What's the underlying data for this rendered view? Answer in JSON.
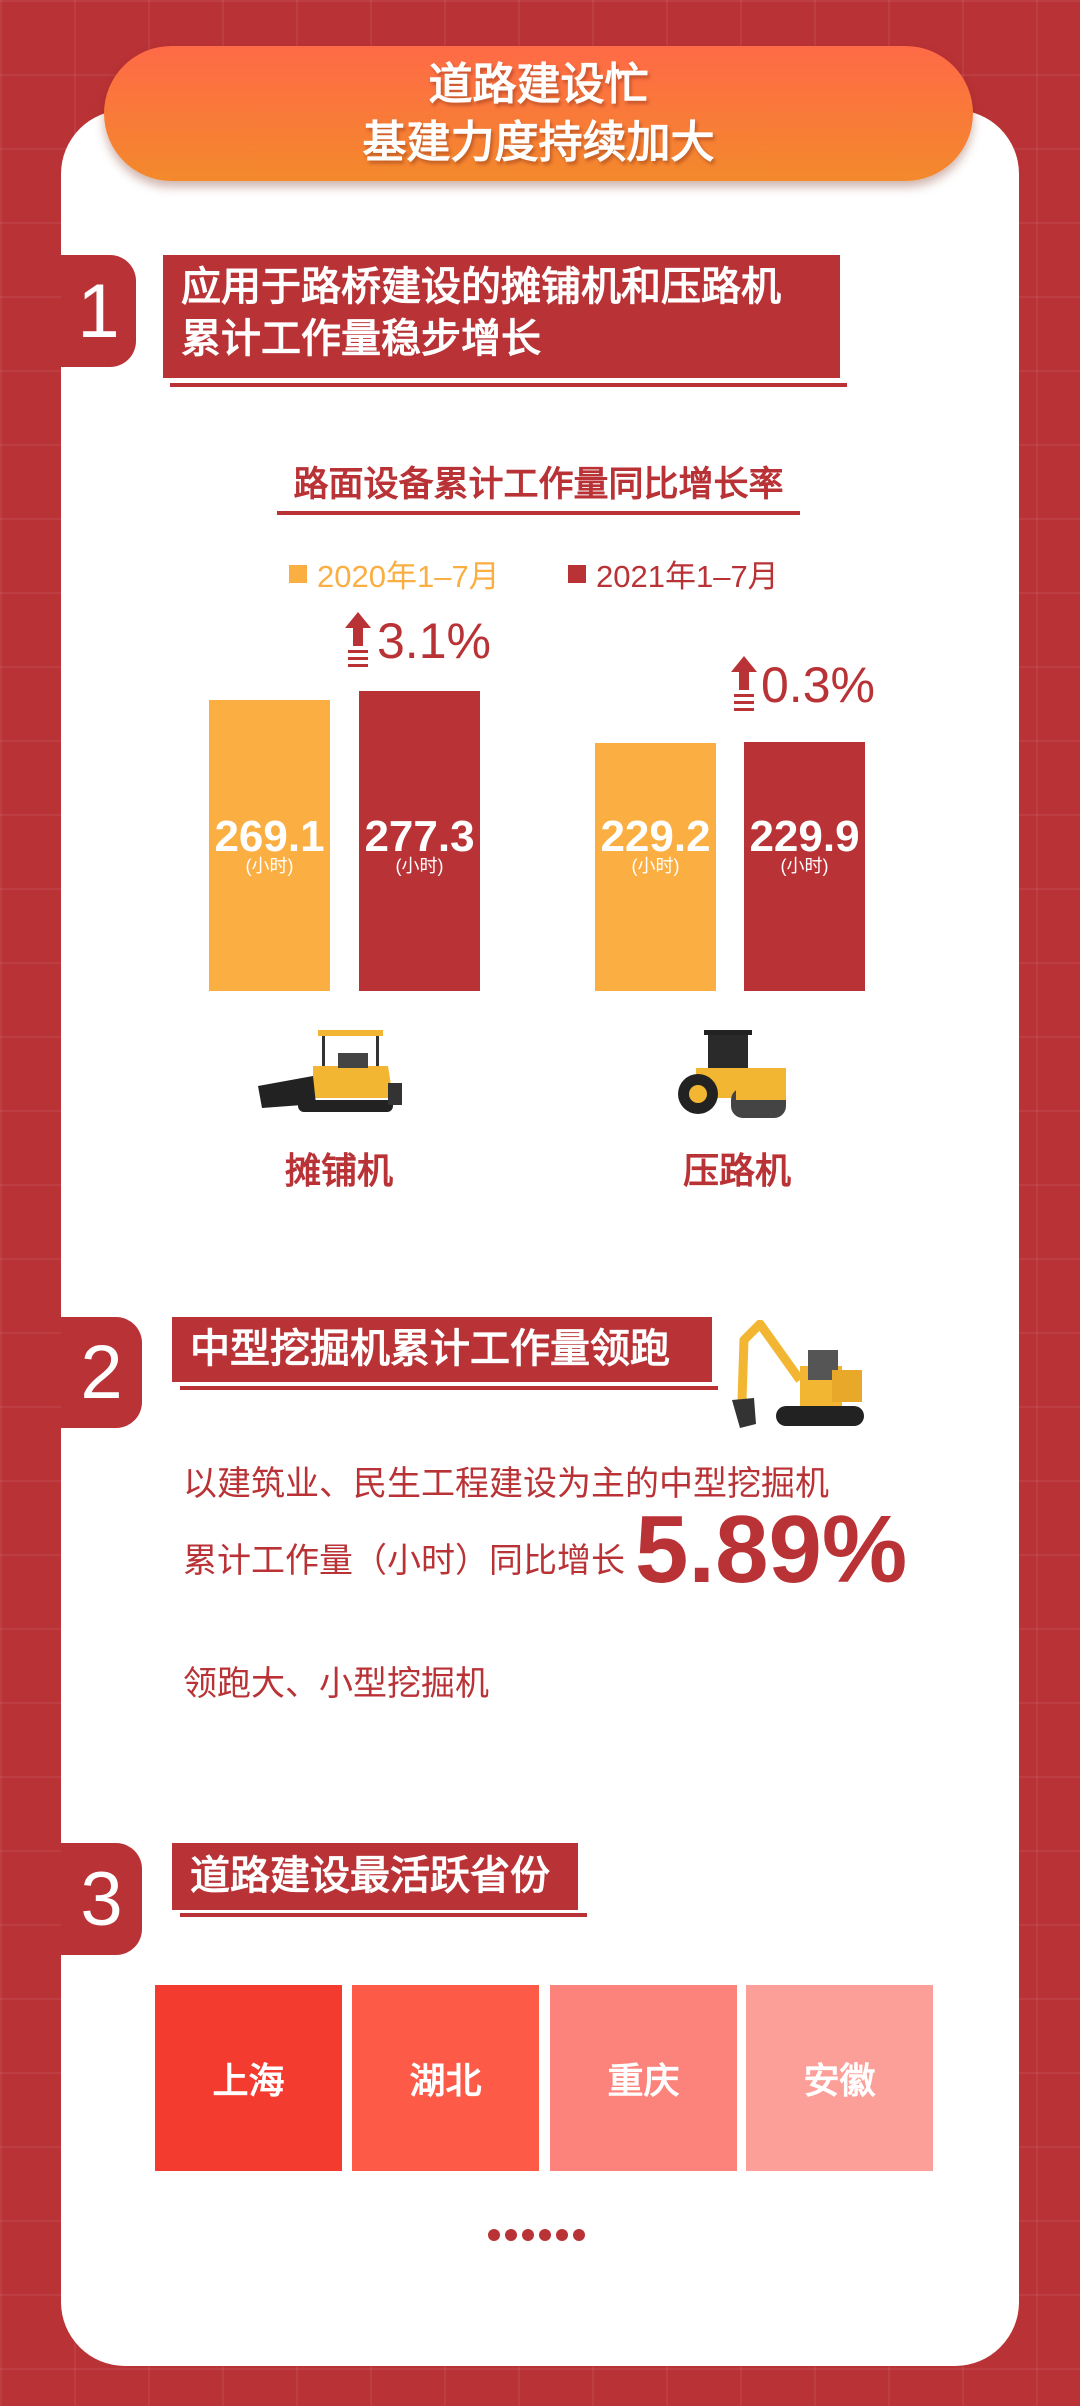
{
  "header": {
    "title_line1": "道路建设忙",
    "title_line2": "基建力度持续加大"
  },
  "colors": {
    "background": "#b93236",
    "accent_red": "#b93236",
    "orange": "#fbae42",
    "header_gradient": [
      "#ff6a47",
      "#f3892b"
    ]
  },
  "section1": {
    "number": "1",
    "title_line1": "应用于路桥建设的摊铺机和压路机",
    "title_line2": "累计工作量稳步增长"
  },
  "chart_data": {
    "type": "bar",
    "title": "路面设备累计工作量同比增长率",
    "categories": [
      "摊铺机",
      "压路机"
    ],
    "series": [
      {
        "name": "2020年1–7月",
        "color": "#fbae42",
        "values": [
          269.1,
          229.2
        ]
      },
      {
        "name": "2021年1–7月",
        "color": "#b93236",
        "values": [
          277.3,
          229.9
        ]
      }
    ],
    "unit_label": "(小时)",
    "growth": [
      "3.1%",
      "0.3%"
    ],
    "legend_position": "top",
    "grid": false
  },
  "section2": {
    "number": "2",
    "title": "中型挖掘机累计工作量领跑",
    "line1": "以建筑业、民生工程建设为主的中型挖掘机",
    "line2": "累计工作量（小时）同比增长",
    "highlight": "5.89%",
    "line3": "领跑大、小型挖掘机"
  },
  "section3": {
    "number": "3",
    "title": "道路建设最活跃省份",
    "provinces": [
      {
        "name": "上海",
        "color": "#f33b30"
      },
      {
        "name": "湖北",
        "color": "#fe5a48"
      },
      {
        "name": "重庆",
        "color": "#fc837c"
      },
      {
        "name": "安徽",
        "color": "#fd9f99"
      }
    ],
    "more": "……"
  }
}
